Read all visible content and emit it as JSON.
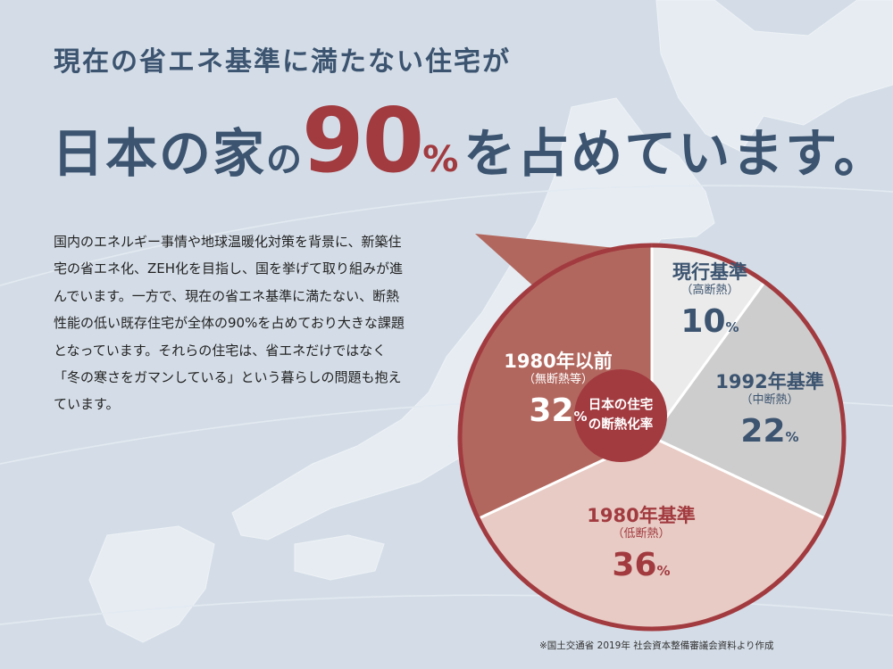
{
  "headline": {
    "line1": "現在の省エネ基準に満たない住宅が",
    "line2_a": "日本の家",
    "line2_b": "の",
    "line2_number": "90",
    "line2_percent": "%",
    "line2_c": "を占めています。"
  },
  "body_text": "国内のエネルギー事情や地球温暖化対策を背景に、新築住宅の省エネ化、ZEH化を目指し、国を挙げて取り組みが進んでいます。一方で、現在の省エネ基準に満たない、断熱性能の低い既存住宅が全体の90%を占めており大きな課題となっています。それらの住宅は、省エネだけではなく「冬の寒さをガマンしている」という暮らしの問題も抱えています。",
  "source_note": "※国土交通省 2019年 社会資本整備審議会資料より作成",
  "chart_data": {
    "type": "pie",
    "center_label": [
      "日本の住宅",
      "の断熱化率"
    ],
    "unit": "%",
    "slices": [
      {
        "label": "現行基準",
        "sublabel": "（高断熱）",
        "value": 10,
        "color": "#ebebeb",
        "text_color": "#3c5470"
      },
      {
        "label": "1992年基準",
        "sublabel": "（中断熱）",
        "value": 22,
        "color": "#cdcdcd",
        "text_color": "#3c5470"
      },
      {
        "label": "1980年基準",
        "sublabel": "（低断熱）",
        "value": 36,
        "color": "#e8cbc4",
        "text_color": "#a23b40"
      },
      {
        "label": "1980年以前",
        "sublabel": "（無断熱等）",
        "value": 32,
        "color": "#b2675e",
        "text_color": "#ffffff"
      }
    ],
    "outline_color": "#a23b40",
    "center_color": "#a23b40"
  }
}
